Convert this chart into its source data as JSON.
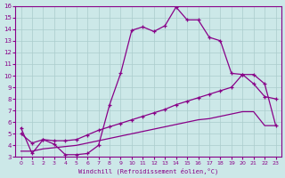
{
  "xlabel": "Windchill (Refroidissement éolien,°C)",
  "xlim": [
    -0.5,
    23.5
  ],
  "ylim": [
    3,
    16
  ],
  "xticks": [
    0,
    1,
    2,
    3,
    4,
    5,
    6,
    7,
    8,
    9,
    10,
    11,
    12,
    13,
    14,
    15,
    16,
    17,
    18,
    19,
    20,
    21,
    22,
    23
  ],
  "yticks": [
    3,
    4,
    5,
    6,
    7,
    8,
    9,
    10,
    11,
    12,
    13,
    14,
    15,
    16
  ],
  "bg_color": "#cce8e8",
  "line_color": "#880088",
  "grid_color": "#aacccc",
  "curve1_x": [
    0,
    1,
    2,
    3,
    4,
    5,
    6,
    7,
    8,
    9,
    10,
    11,
    12,
    13,
    14,
    15,
    16,
    17,
    18,
    19,
    20,
    21,
    22,
    23
  ],
  "curve1_y": [
    5.5,
    3.3,
    4.5,
    4.1,
    3.2,
    3.2,
    3.3,
    4.0,
    7.5,
    10.2,
    13.9,
    14.2,
    13.8,
    14.3,
    15.9,
    14.8,
    14.8,
    13.3,
    13.0,
    10.2,
    10.1,
    9.3,
    8.2,
    8.0
  ],
  "curve2_x": [
    0,
    1,
    2,
    3,
    4,
    5,
    6,
    7,
    8,
    9,
    10,
    11,
    12,
    13,
    14,
    15,
    16,
    17,
    18,
    19,
    20,
    21,
    22,
    23
  ],
  "curve2_y": [
    5.0,
    4.2,
    4.5,
    4.4,
    4.4,
    4.5,
    4.9,
    5.3,
    5.6,
    5.9,
    6.2,
    6.5,
    6.8,
    7.1,
    7.5,
    7.8,
    8.1,
    8.4,
    8.7,
    9.0,
    10.1,
    10.1,
    9.3,
    5.7
  ],
  "curve3_x": [
    0,
    1,
    2,
    3,
    4,
    5,
    6,
    7,
    8,
    9,
    10,
    11,
    12,
    13,
    14,
    15,
    16,
    17,
    18,
    19,
    20,
    21,
    22,
    23
  ],
  "curve3_y": [
    3.5,
    3.5,
    3.7,
    3.8,
    3.9,
    4.0,
    4.2,
    4.4,
    4.6,
    4.8,
    5.0,
    5.2,
    5.4,
    5.6,
    5.8,
    6.0,
    6.2,
    6.3,
    6.5,
    6.7,
    6.9,
    6.9,
    5.7,
    5.7
  ]
}
